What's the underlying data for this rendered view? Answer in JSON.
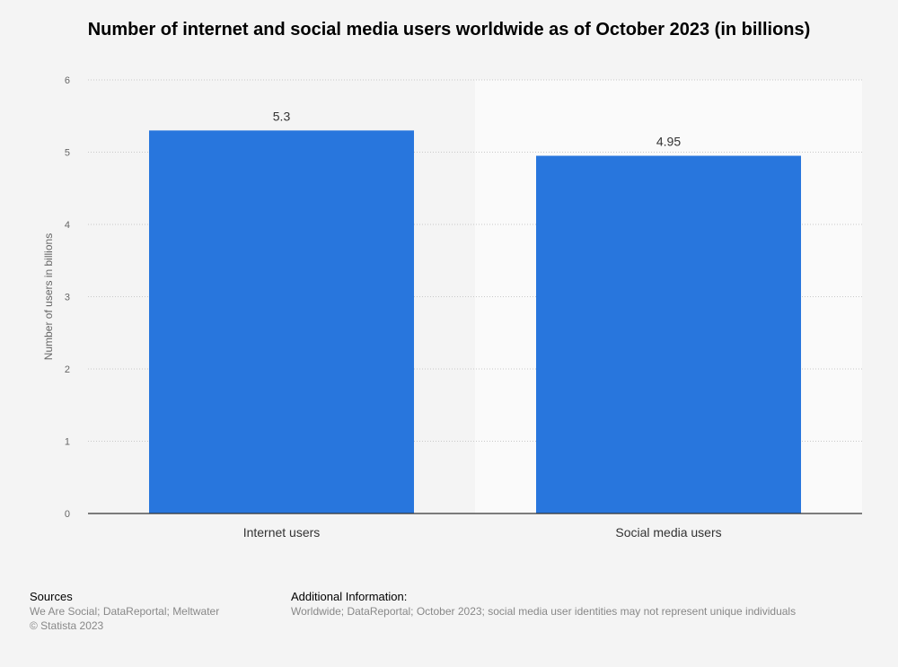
{
  "chart_data": {
    "type": "bar",
    "title": "Number of internet and social media users worldwide as of October 2023 (in billions)",
    "ylabel": "Number of users in billions",
    "xlabel": "",
    "categories": [
      "Internet users",
      "Social media users"
    ],
    "values": [
      5.3,
      4.95
    ],
    "value_labels": [
      "5.3",
      "4.95"
    ],
    "ylim": [
      0,
      6
    ],
    "yticks": [
      0,
      1,
      2,
      3,
      4,
      5,
      6
    ],
    "grid": true,
    "bar_color": "#2876dd"
  },
  "footer": {
    "sources_heading": "Sources",
    "sources_text": "We Are Social; DataReportal; Meltwater",
    "copyright": "© Statista 2023",
    "additional_heading": "Additional Information:",
    "additional_text": "Worldwide; DataReportal; October 2023; social media user identities may not represent unique individuals"
  }
}
